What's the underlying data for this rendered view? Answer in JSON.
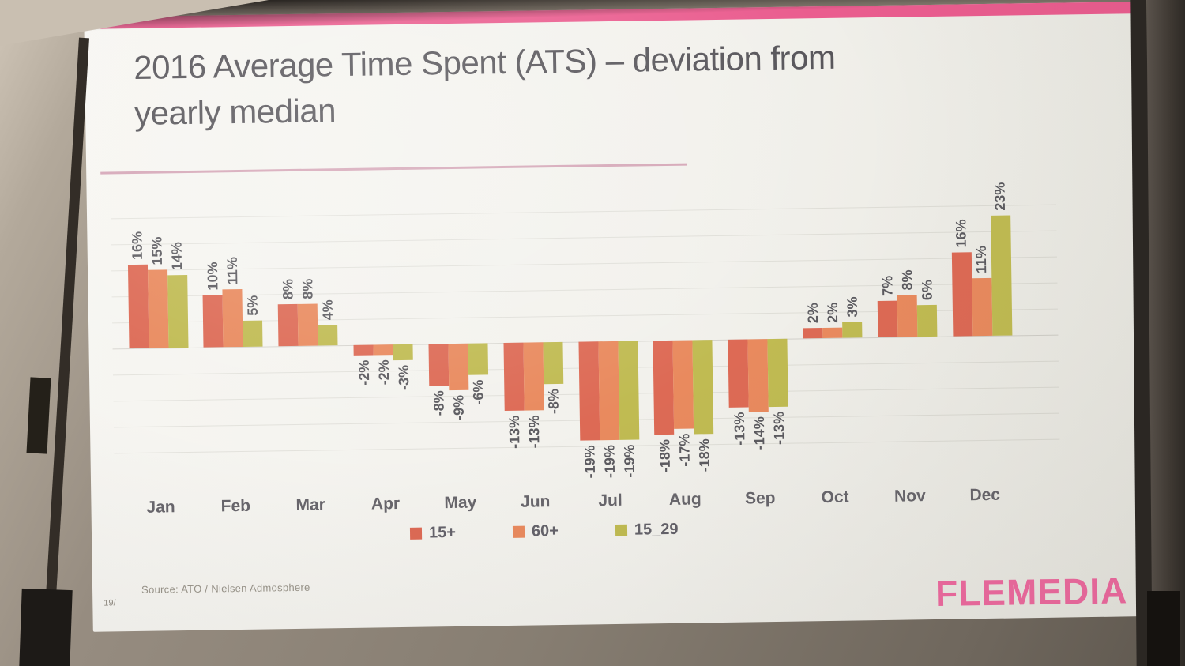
{
  "slide": {
    "title_line1": "2016 Average Time Spent (ATS) – deviation from",
    "title_line2": "yearly median",
    "source": "Source: ATO / Nielsen Admosphere",
    "page_number": "19/",
    "logo": "FLEMEDIA"
  },
  "colors": {
    "accent_pink": "#ea5d8f",
    "underline_pink": "#c98ba3",
    "logo_pink": "#ef6ba0",
    "series_15plus": "#dd6a55",
    "series_60plus": "#e98a5e",
    "series_15_29": "#c0bb52"
  },
  "chart_data": {
    "type": "bar",
    "title": "2016 Average Time Spent (ATS) – deviation from yearly median",
    "categories": [
      "Jan",
      "Feb",
      "Mar",
      "Apr",
      "May",
      "Jun",
      "Jul",
      "Aug",
      "Sep",
      "Oct",
      "Nov",
      "Dec"
    ],
    "series": [
      {
        "name": "15+",
        "color": "#dd6a55",
        "values": [
          16,
          10,
          8,
          -2,
          -8,
          -13,
          -19,
          -18,
          -13,
          2,
          7,
          16
        ]
      },
      {
        "name": "60+",
        "color": "#e98a5e",
        "values": [
          15,
          11,
          8,
          -2,
          -9,
          -13,
          -19,
          -17,
          -14,
          2,
          8,
          11
        ]
      },
      {
        "name": "15_29",
        "color": "#c0bb52",
        "values": [
          14,
          5,
          4,
          -3,
          -6,
          -8,
          -19,
          -18,
          -13,
          3,
          6,
          23
        ]
      }
    ],
    "unit": "%",
    "xlabel": "",
    "ylabel": "",
    "ylim": [
      -25,
      27
    ],
    "gridlines_every": 5,
    "grid": true,
    "legend_position": "bottom",
    "data_labels": true,
    "data_label_rotation": 90
  }
}
